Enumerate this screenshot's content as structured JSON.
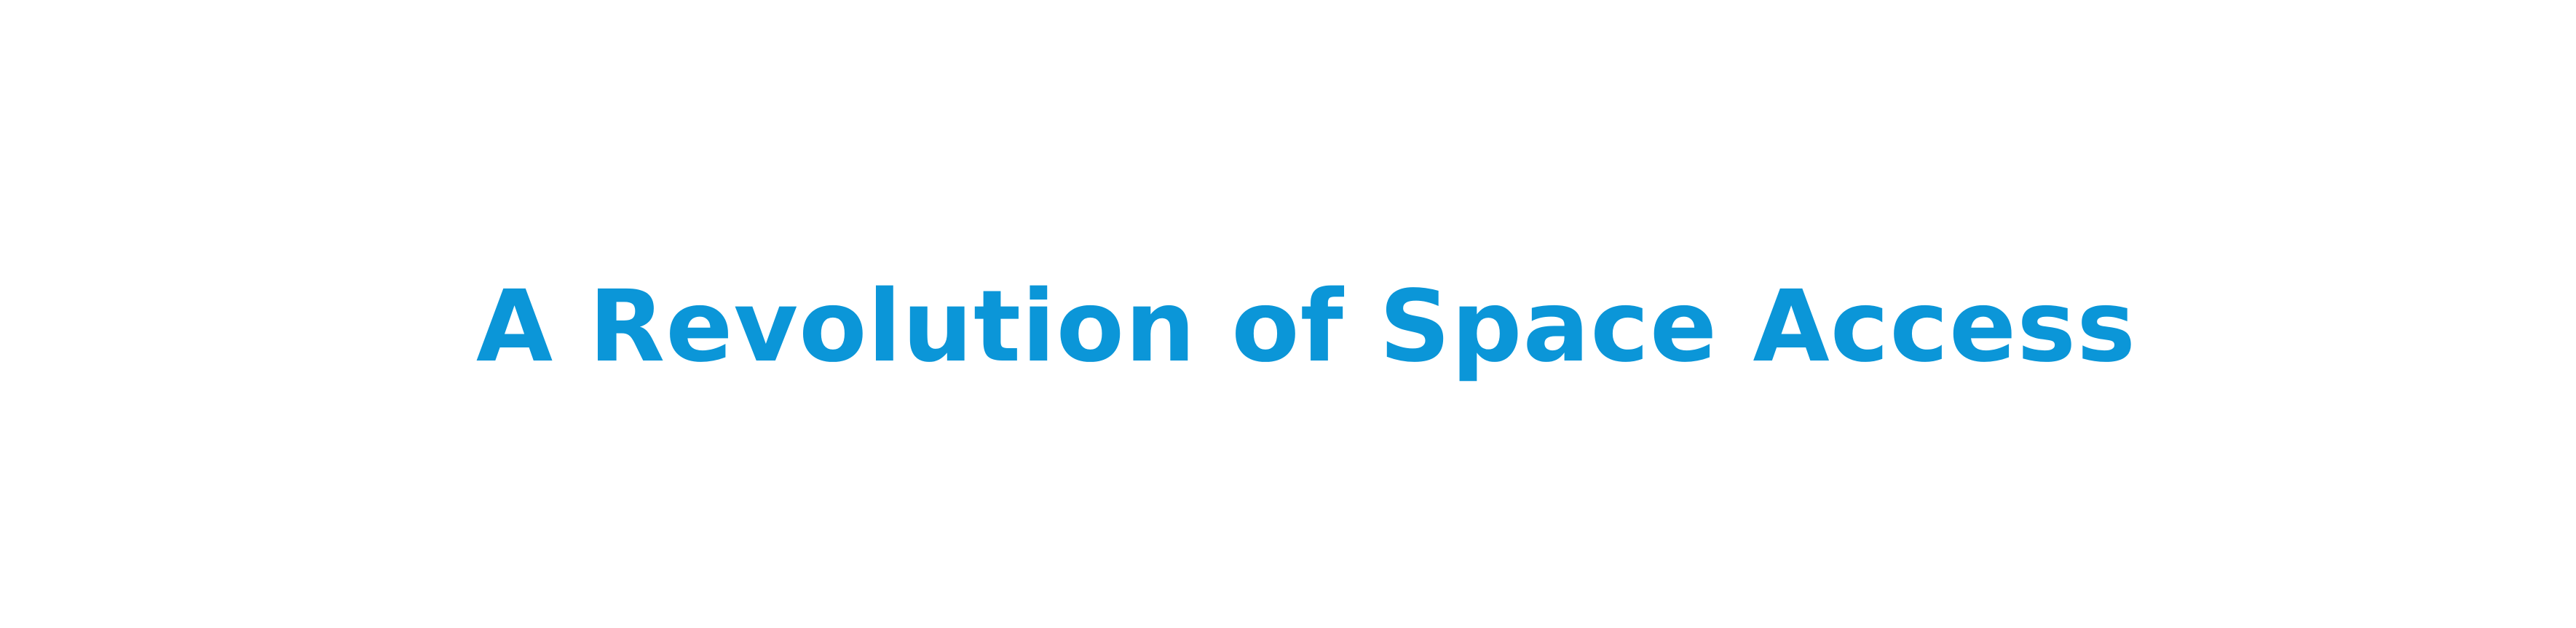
{
  "hero": {
    "headline": "A Revolution of Space Access",
    "headline_color": "#0b96d8",
    "background_color": "#ffffff"
  }
}
